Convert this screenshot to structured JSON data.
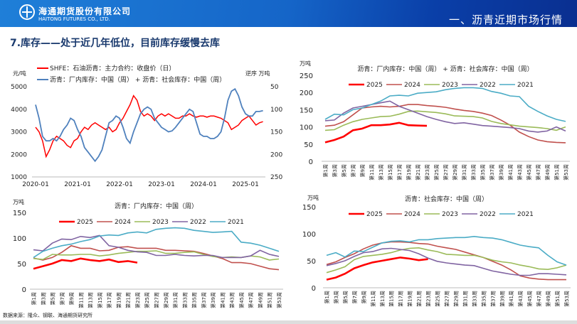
{
  "header": {
    "company_cn": "海通期货股份有限公司",
    "company_en": "HAITONG FUTURES CO., LTD.",
    "section": "一、沥青近期市场行情",
    "logo_icon": "haitong-logo"
  },
  "page_title": "7.库存——处于近几年低位，目前库存缓慢去库",
  "source": "数据来源：隆众、钢联、海通期货研究所",
  "chart_data": [
    {
      "type": "line",
      "id": "price-vs-inventory",
      "left_unit": "元/吨",
      "right_unit": "逆序 万吨",
      "ylim_left": [
        1000,
        5000
      ],
      "ylim_right": [
        50,
        250
      ],
      "right_inverted": true,
      "yticks_left": [
        "5000",
        "4000",
        "3000",
        "2000",
        "1000"
      ],
      "yticks_right": [
        "50",
        "100",
        "150",
        "200",
        "250"
      ],
      "xticks": [
        "2020-01",
        "2021-01",
        "2022-01",
        "2023-01",
        "2024-01",
        "2025-01"
      ],
      "x_start": "2020-01",
      "x_step": "month",
      "series": [
        {
          "name": "SHFE：石油沥青：主力合约：收盘价（日）",
          "axis": "left",
          "color": "#ff0000",
          "values": [
            3200,
            3000,
            2600,
            1900,
            2200,
            2600,
            2800,
            2700,
            2600,
            2400,
            2300,
            2600,
            2700,
            3000,
            3200,
            3100,
            3300,
            3400,
            3300,
            3200,
            3100,
            3200,
            3000,
            3100,
            3400,
            3600,
            3900,
            4200,
            4600,
            4400,
            3900,
            3700,
            3800,
            3700,
            3500,
            3700,
            3800,
            3700,
            3800,
            3700,
            3600,
            3600,
            3700,
            3700,
            3800,
            3700,
            3650,
            3700,
            3700,
            3650,
            3700,
            3700,
            3650,
            3600,
            3500,
            3400,
            3100,
            3200,
            3300,
            3500,
            3600,
            3700,
            3500,
            3300,
            3400,
            3450
          ]
        },
        {
          "name": "沥青：厂内库存：中国（周） + 沥青：社会库存：中国（周）",
          "axis": "right",
          "color": "#4f81bd",
          "values": [
            90,
            120,
            160,
            170,
            170,
            165,
            170,
            160,
            145,
            135,
            120,
            125,
            145,
            160,
            185,
            195,
            205,
            215,
            205,
            190,
            160,
            130,
            125,
            115,
            120,
            140,
            165,
            175,
            150,
            130,
            110,
            100,
            95,
            100,
            120,
            130,
            140,
            145,
            150,
            148,
            140,
            130,
            120,
            110,
            100,
            105,
            130,
            155,
            160,
            160,
            165,
            165,
            160,
            150,
            120,
            80,
            60,
            55,
            70,
            95,
            110,
            115,
            115,
            105,
            105,
            103
          ]
        }
      ]
    },
    {
      "type": "line",
      "id": "total-inventory",
      "title": "沥青：厂内库存：中国（周） + 沥青：社会库存：中国（周）",
      "unit": "万吨",
      "ylim": [
        0,
        250
      ],
      "yticks": [
        "250",
        "200",
        "150",
        "100",
        "50",
        "0"
      ],
      "series": [
        {
          "name": "2025",
          "color": "#ff0000",
          "values": [
            55,
            62,
            72,
            90,
            95,
            105,
            105,
            107,
            112,
            105,
            104,
            103
          ]
        },
        {
          "name": "2024",
          "color": "#c0504d",
          "values": [
            102,
            105,
            115,
            135,
            155,
            158,
            160,
            158,
            160,
            165,
            165,
            162,
            160,
            157,
            152,
            148,
            145,
            140,
            133,
            120,
            105,
            85,
            72,
            62,
            57,
            55,
            54
          ]
        },
        {
          "name": "2023",
          "color": "#9bbb59",
          "values": [
            90,
            92,
            105,
            115,
            122,
            126,
            130,
            131,
            137,
            145,
            146,
            144,
            142,
            138,
            132,
            131,
            130,
            126,
            116,
            110,
            106,
            102,
            100,
            98,
            95,
            90,
            100
          ]
        },
        {
          "name": "2022",
          "color": "#8064a2",
          "values": [
            118,
            120,
            140,
            155,
            160,
            165,
            170,
            175,
            160,
            150,
            140,
            130,
            122,
            115,
            110,
            112,
            108,
            104,
            102,
            100,
            98,
            95,
            88,
            85,
            88,
            100,
            88
          ]
        },
        {
          "name": "2021",
          "color": "#4bacc6",
          "values": [
            122,
            137,
            135,
            150,
            155,
            165,
            175,
            190,
            192,
            190,
            198,
            200,
            202,
            208,
            212,
            214,
            214,
            212,
            203,
            198,
            190,
            188,
            160,
            145,
            132,
            122,
            116
          ]
        }
      ]
    },
    {
      "type": "line",
      "id": "factory-inventory",
      "title": "沥青：厂内库存：中国（周）",
      "unit": "万吨",
      "ylim": [
        0,
        150
      ],
      "yticks": [
        "150",
        "100",
        "50",
        "0"
      ],
      "series": [
        {
          "name": "2025",
          "color": "#ff0000",
          "values": [
            40,
            45,
            50,
            57,
            55,
            60,
            57,
            55,
            58,
            53,
            55,
            52
          ]
        },
        {
          "name": "2024",
          "color": "#c0504d",
          "values": [
            61,
            57,
            62,
            72,
            85,
            80,
            80,
            75,
            76,
            82,
            83,
            80,
            80,
            80,
            76,
            76,
            75,
            74,
            70,
            65,
            60,
            52,
            52,
            50,
            45,
            40,
            38
          ]
        },
        {
          "name": "2023",
          "color": "#9bbb59",
          "values": [
            60,
            58,
            68,
            67,
            67,
            68,
            68,
            65,
            67,
            70,
            72,
            74,
            74,
            75,
            70,
            70,
            72,
            73,
            68,
            64,
            62,
            63,
            62,
            65,
            63,
            57,
            59
          ]
        },
        {
          "name": "2022",
          "color": "#8064a2",
          "values": [
            77,
            75,
            90,
            98,
            97,
            103,
            101,
            105,
            85,
            82,
            76,
            73,
            72,
            66,
            66,
            68,
            66,
            65,
            66,
            66,
            62,
            62,
            62,
            65,
            76,
            68,
            64
          ]
        },
        {
          "name": "2021",
          "color": "#4bacc6",
          "values": [
            62,
            74,
            80,
            85,
            88,
            93,
            97,
            104,
            106,
            105,
            110,
            112,
            110,
            117,
            119,
            120,
            119,
            115,
            113,
            111,
            112,
            113,
            92,
            90,
            86,
            80,
            74
          ]
        }
      ]
    },
    {
      "type": "line",
      "id": "social-inventory",
      "title": "沥青：社会库存：中国（周）",
      "unit": "万吨",
      "ylim": [
        0,
        150
      ],
      "yticks": [
        "150",
        "100",
        "50",
        "0"
      ],
      "series": [
        {
          "name": "2025",
          "color": "#ff0000",
          "values": [
            15,
            19,
            26,
            36,
            42,
            47,
            50,
            53,
            56,
            54,
            51,
            53
          ]
        },
        {
          "name": "2024",
          "color": "#c0504d",
          "values": [
            43,
            48,
            56,
            63,
            72,
            79,
            83,
            85,
            85,
            84,
            82,
            81,
            77,
            74,
            71,
            66,
            61,
            56,
            49,
            42,
            33,
            22,
            18,
            16,
            15,
            15,
            15
          ]
        },
        {
          "name": "2023",
          "color": "#9bbb59",
          "values": [
            28,
            33,
            39,
            52,
            58,
            60,
            62,
            65,
            70,
            73,
            74,
            70,
            67,
            62,
            61,
            60,
            60,
            56,
            51,
            48,
            46,
            42,
            39,
            35,
            34,
            37,
            42
          ]
        },
        {
          "name": "2022",
          "color": "#8064a2",
          "values": [
            41,
            45,
            50,
            58,
            65,
            67,
            72,
            73,
            71,
            69,
            63,
            55,
            49,
            46,
            44,
            42,
            41,
            36,
            31,
            28,
            25,
            23,
            23,
            26,
            26,
            25,
            24
          ]
        },
        {
          "name": "2021",
          "color": "#4bacc6",
          "values": [
            60,
            65,
            57,
            68,
            67,
            75,
            83,
            86,
            87,
            85,
            89,
            89,
            91,
            92,
            93,
            93,
            95,
            93,
            92,
            89,
            84,
            79,
            76,
            74,
            60,
            48,
            42
          ]
        }
      ]
    }
  ],
  "week_labels": [
    "第1周",
    "第3周",
    "第5周",
    "第7周",
    "第9周",
    "第11周",
    "第13周",
    "第15周",
    "第17周",
    "第19周",
    "第21周",
    "第23周",
    "第25周",
    "第27周",
    "第29周",
    "第31周",
    "第33周",
    "第35周",
    "第37周",
    "第39周",
    "第41周",
    "第43周",
    "第45周",
    "第47周",
    "第49周",
    "第51周",
    "第53周"
  ]
}
